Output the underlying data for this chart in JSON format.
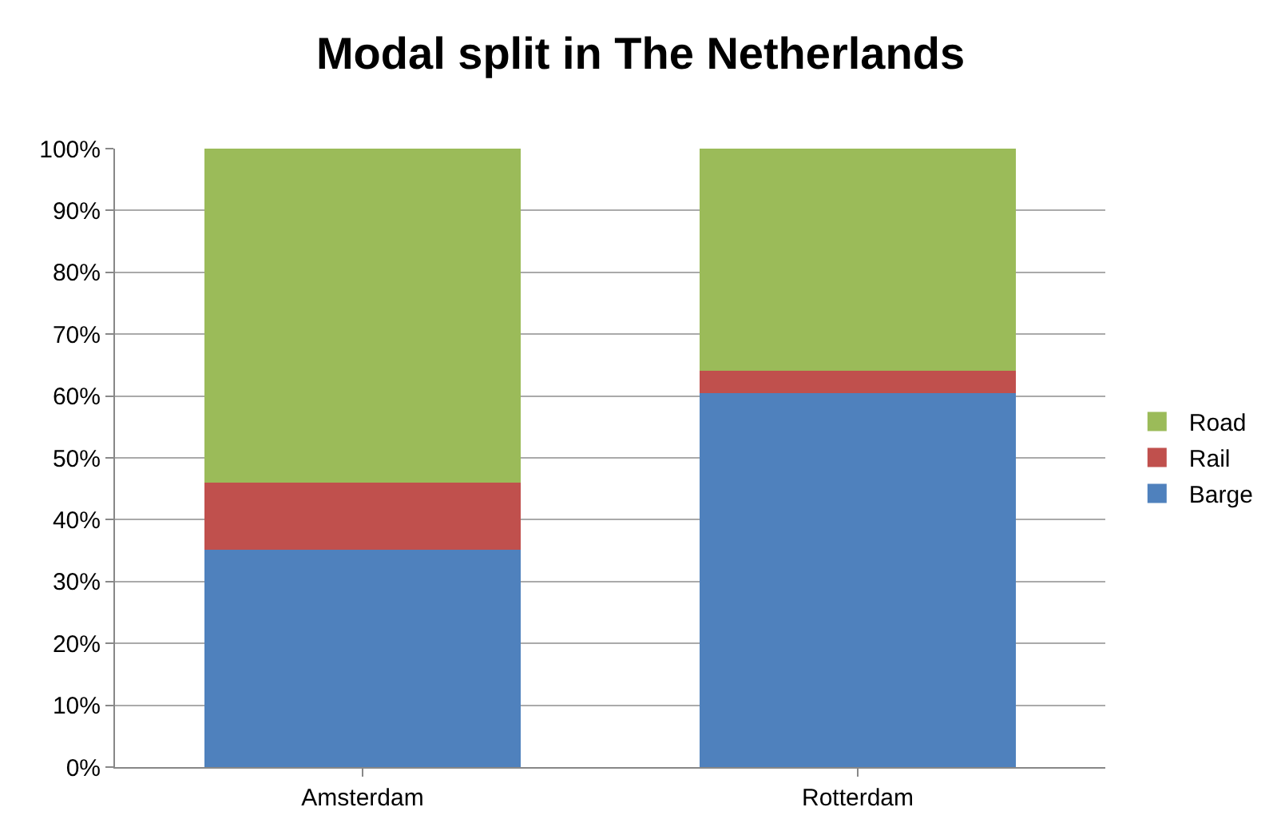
{
  "chart_data": {
    "type": "bar",
    "title": "Modal split in The Netherlands",
    "categories": [
      "Amsterdam",
      "Rotterdam"
    ],
    "stacked": true,
    "series": [
      {
        "name": "Barge",
        "color": "#4f81bd",
        "values": [
          35.2,
          60.5
        ]
      },
      {
        "name": "Rail",
        "color": "#c0504d",
        "values": [
          10.8,
          3.6
        ]
      },
      {
        "name": "Road",
        "color": "#9bbb59",
        "values": [
          54.0,
          35.9
        ]
      }
    ],
    "ylim": [
      0,
      100
    ],
    "yticks": [
      {
        "value": 0,
        "label": "0%"
      },
      {
        "value": 10,
        "label": "10%"
      },
      {
        "value": 20,
        "label": "20%"
      },
      {
        "value": 30,
        "label": "30%"
      },
      {
        "value": 40,
        "label": "40%"
      },
      {
        "value": 50,
        "label": "50%"
      },
      {
        "value": 60,
        "label": "60%"
      },
      {
        "value": 70,
        "label": "70%"
      },
      {
        "value": 80,
        "label": "80%"
      },
      {
        "value": 90,
        "label": "90%"
      },
      {
        "value": 100,
        "label": "100%"
      }
    ],
    "grid": "y",
    "legend": "right"
  }
}
